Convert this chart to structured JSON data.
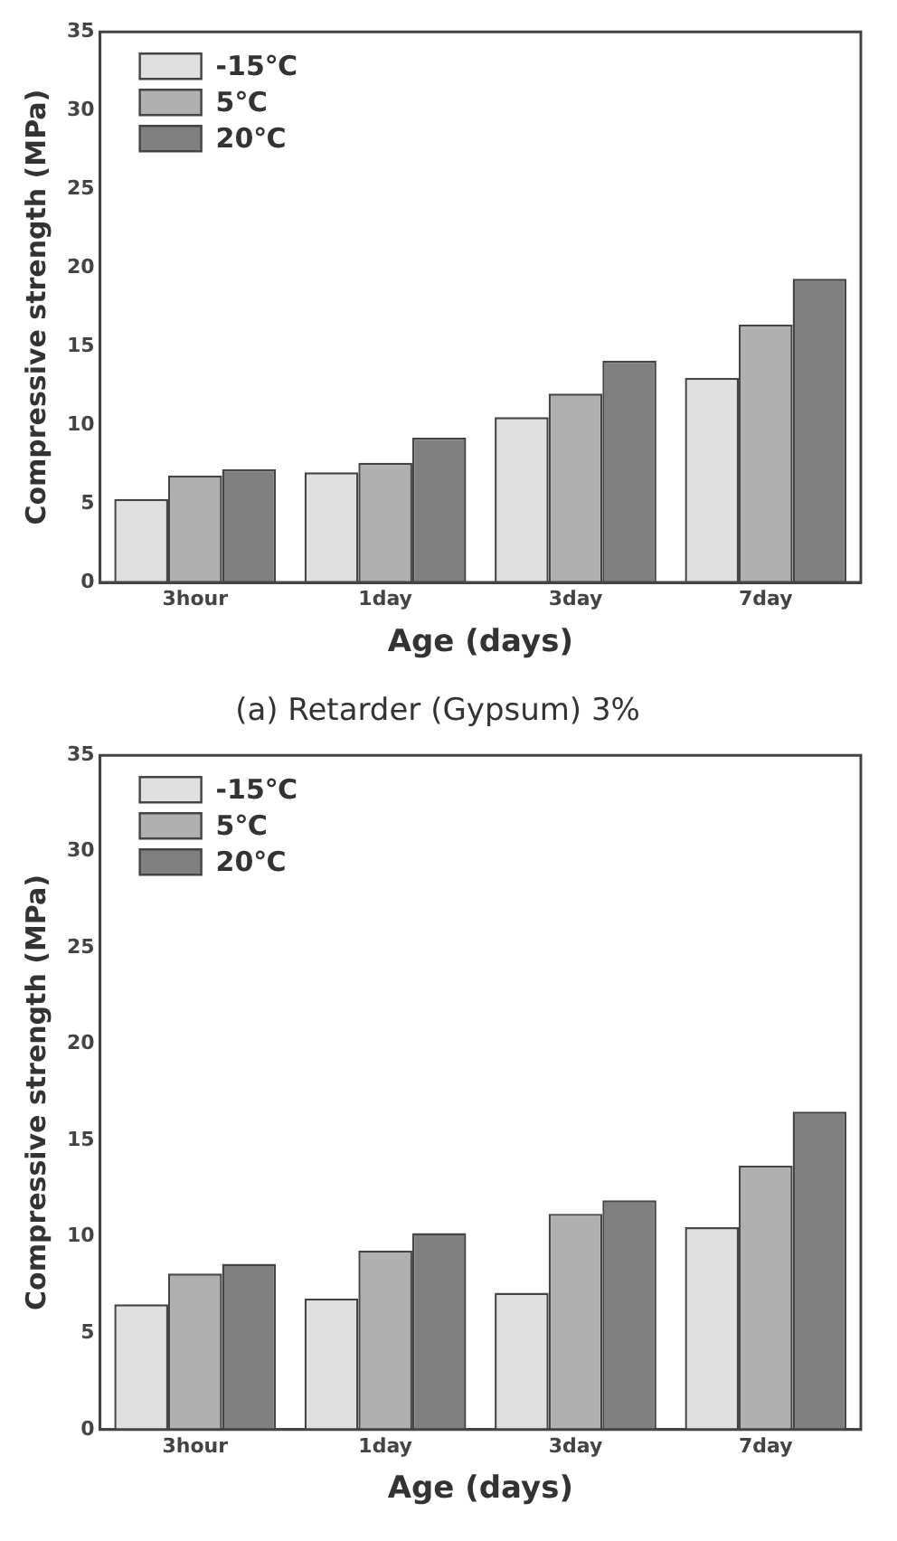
{
  "chart_data": [
    {
      "type": "bar",
      "title": "(a) Retarder (Gypsum) 3%",
      "xlabel": "Age (days)",
      "ylabel": "Compressive strength (MPa)",
      "categories": [
        "3hour",
        "1day",
        "3day",
        "7day"
      ],
      "series": [
        {
          "name": "-15℃",
          "color": "#e0e0e0",
          "values": [
            5.3,
            7.0,
            10.5,
            13.0
          ]
        },
        {
          "name": "5℃",
          "color": "#b0b0b0",
          "values": [
            6.8,
            7.6,
            12.0,
            16.4
          ]
        },
        {
          "name": "20℃",
          "color": "#808080",
          "values": [
            7.2,
            9.2,
            14.1,
            19.3
          ]
        }
      ],
      "ylim": [
        0,
        35
      ],
      "yticks": [
        0,
        5,
        10,
        15,
        20,
        25,
        30,
        35
      ],
      "grid": false,
      "legend": "top left"
    },
    {
      "type": "bar",
      "xlabel": "Age (days)",
      "ylabel": "Compressive strength (MPa)",
      "categories": [
        "3hour",
        "1day",
        "3day",
        "7day"
      ],
      "series": [
        {
          "name": "-15℃",
          "color": "#e0e0e0",
          "values": [
            6.5,
            6.8,
            7.1,
            10.5
          ]
        },
        {
          "name": "5℃",
          "color": "#b0b0b0",
          "values": [
            8.1,
            9.3,
            11.2,
            13.7
          ]
        },
        {
          "name": "20℃",
          "color": "#808080",
          "values": [
            8.6,
            10.2,
            11.9,
            16.5
          ]
        }
      ],
      "ylim": [
        0,
        35
      ],
      "yticks": [
        0,
        5,
        10,
        15,
        20,
        25,
        30,
        35
      ],
      "grid": false,
      "legend": "top left"
    }
  ]
}
